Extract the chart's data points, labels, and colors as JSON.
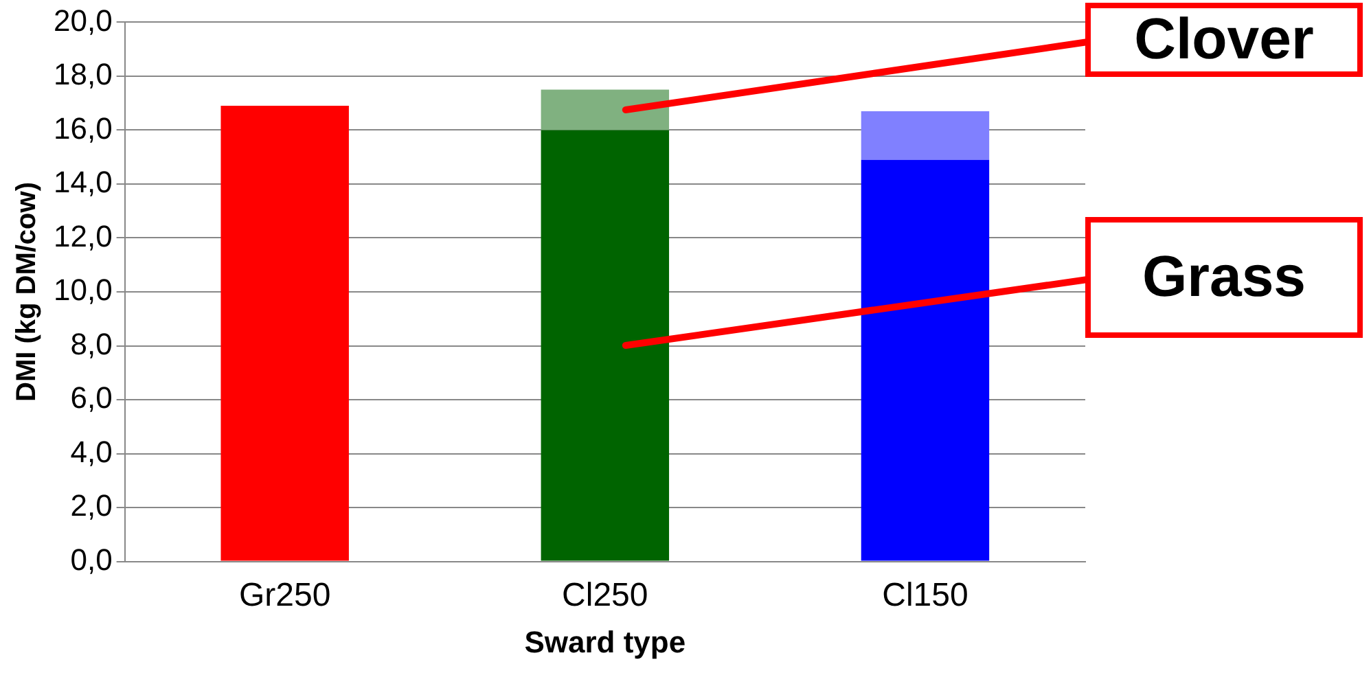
{
  "chart_data": {
    "type": "bar",
    "xlabel": "Sward type",
    "ylabel": "DMI (kg DM/cow)",
    "categories": [
      "Gr250",
      "Cl250",
      "Cl150"
    ],
    "stacked": true,
    "series": [
      {
        "colors": [
          "#ff0000",
          "#006400",
          "#0000ff"
        ],
        "values": [
          16.9,
          16.0,
          14.9
        ]
      },
      {
        "colors": [
          "#ff0000",
          "#80b180",
          "#8080ff"
        ],
        "values": [
          null,
          1.5,
          1.8
        ]
      }
    ],
    "ylim": [
      0,
      20
    ],
    "yticks": [
      {
        "value": 0,
        "label": "0,0"
      },
      {
        "value": 2,
        "label": "2,0"
      },
      {
        "value": 4,
        "label": "4,0"
      },
      {
        "value": 6,
        "label": "6,0"
      },
      {
        "value": 8,
        "label": "8,0"
      },
      {
        "value": 10,
        "label": "10,0"
      },
      {
        "value": 12,
        "label": "12,0"
      },
      {
        "value": 14,
        "label": "14,0"
      },
      {
        "value": 16,
        "label": "16,0"
      },
      {
        "value": 18,
        "label": "18,0"
      },
      {
        "value": 20,
        "label": "20,0"
      }
    ],
    "grid": "y",
    "legend": false,
    "annotations": [
      "Clover",
      "Grass"
    ]
  }
}
